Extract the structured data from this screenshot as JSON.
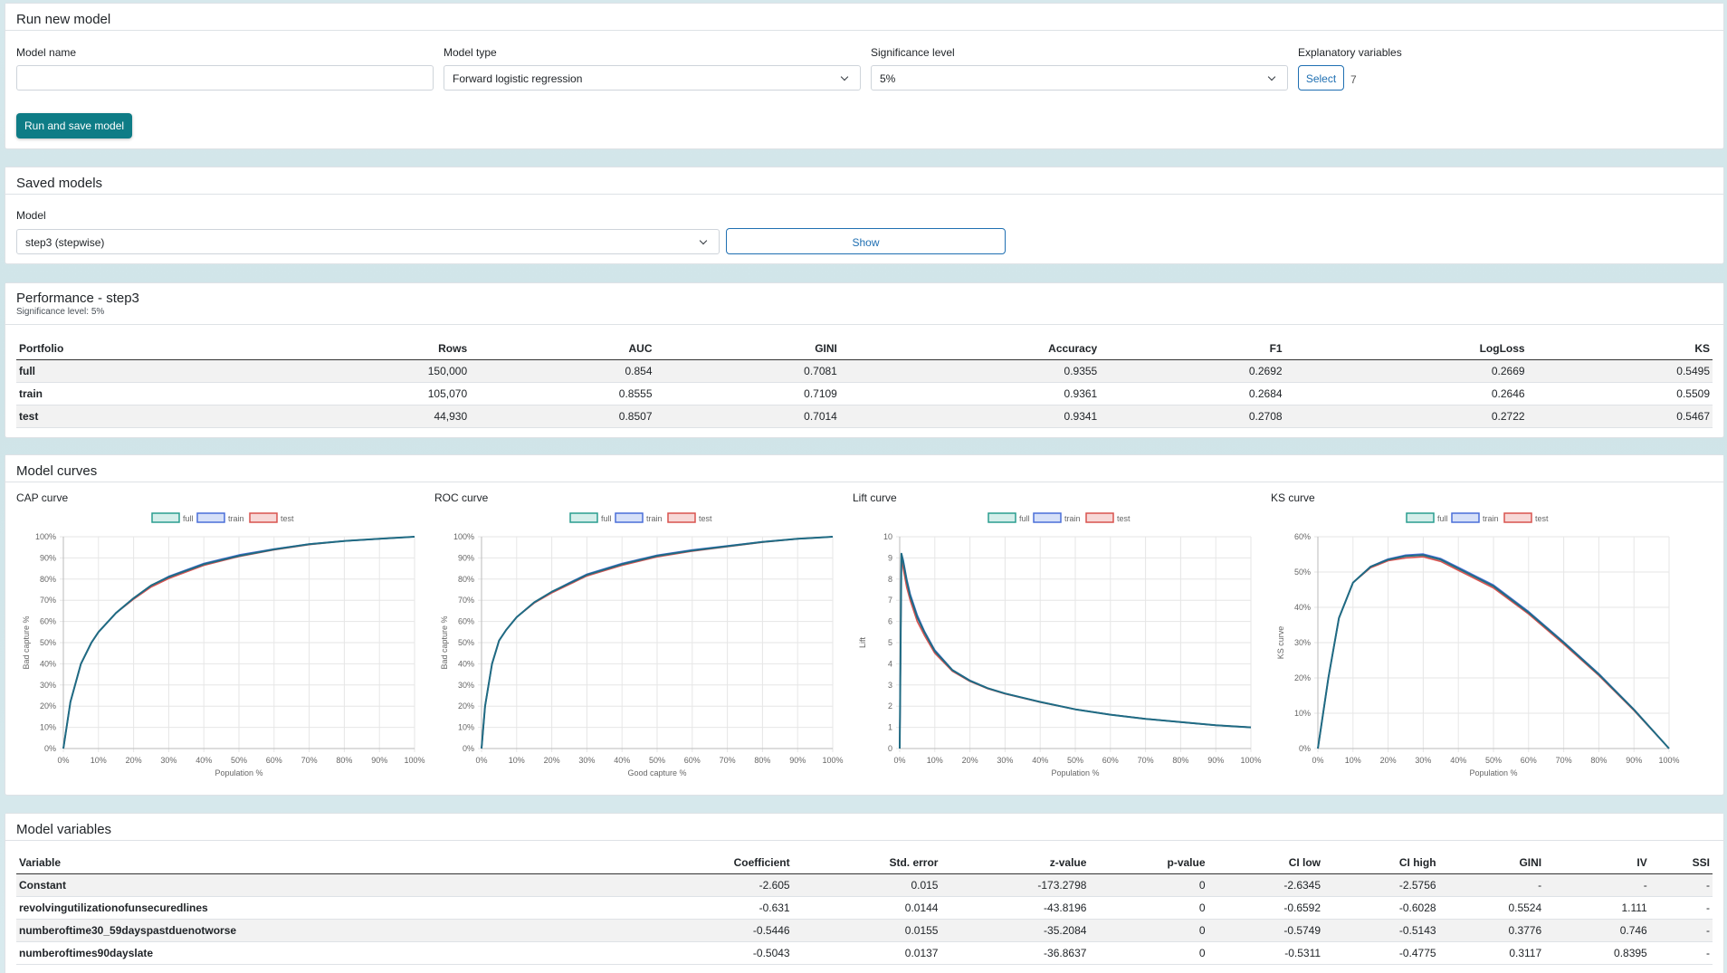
{
  "run_model": {
    "title": "Run new model",
    "model_name_label": "Model name",
    "model_name_value": "",
    "model_type_label": "Model type",
    "model_type_value": "Forward logistic regression",
    "significance_label": "Significance level",
    "significance_value": "5%",
    "explanatory_label": "Explanatory variables",
    "select_label": "Select",
    "explanatory_count": "7",
    "run_button": "Run and save model"
  },
  "saved_models": {
    "title": "Saved models",
    "model_label": "Model",
    "model_value": "step3 (stepwise)",
    "show_button": "Show"
  },
  "performance": {
    "title": "Performance - step3",
    "subtitle": "Significance level: 5%",
    "columns": [
      "Portfolio",
      "Rows",
      "AUC",
      "GINI",
      "Accuracy",
      "F1",
      "LogLoss",
      "KS"
    ],
    "rows": [
      [
        "full",
        "150,000",
        "0.854",
        "0.7081",
        "0.9355",
        "0.2692",
        "0.2669",
        "0.5495"
      ],
      [
        "train",
        "105,070",
        "0.8555",
        "0.7109",
        "0.9361",
        "0.2684",
        "0.2646",
        "0.5509"
      ],
      [
        "test",
        "44,930",
        "0.8507",
        "0.7014",
        "0.9341",
        "0.2708",
        "0.2722",
        "0.5467"
      ]
    ]
  },
  "curves": {
    "title": "Model curves",
    "legend": [
      "full",
      "train",
      "test"
    ],
    "colors": {
      "full": "#2a9d8f",
      "train": "#4a6fd8",
      "test": "#d9534f",
      "line": "#1f6b83"
    }
  },
  "chart_data": [
    {
      "type": "line",
      "title": "CAP curve",
      "xlabel": "Population %",
      "ylabel": "Bad capture %",
      "xlim": [
        0,
        100
      ],
      "ylim": [
        0,
        100
      ],
      "x_ticks": [
        "0%",
        "10%",
        "20%",
        "30%",
        "40%",
        "50%",
        "60%",
        "70%",
        "80%",
        "90%",
        "100%"
      ],
      "y_ticks": [
        "0%",
        "10%",
        "20%",
        "30%",
        "40%",
        "50%",
        "60%",
        "70%",
        "80%",
        "90%",
        "100%"
      ],
      "series": [
        {
          "name": "full",
          "x": [
            0,
            2,
            5,
            8,
            10,
            15,
            20,
            25,
            30,
            40,
            50,
            60,
            70,
            80,
            90,
            100
          ],
          "y": [
            0,
            22,
            40,
            50,
            55,
            64,
            71,
            77,
            81,
            87,
            91,
            94,
            96.5,
            98,
            99,
            100
          ]
        },
        {
          "name": "train",
          "x": [
            0,
            2,
            5,
            8,
            10,
            15,
            20,
            25,
            30,
            40,
            50,
            60,
            70,
            80,
            90,
            100
          ],
          "y": [
            0,
            22,
            40,
            50,
            55,
            64,
            71,
            77,
            81.3,
            87.4,
            91.4,
            94.2,
            96.6,
            98,
            99,
            100
          ]
        },
        {
          "name": "test",
          "x": [
            0,
            2,
            5,
            8,
            10,
            15,
            20,
            25,
            30,
            40,
            50,
            60,
            70,
            80,
            90,
            100
          ],
          "y": [
            0,
            22,
            40,
            50,
            55,
            64,
            70.5,
            76.3,
            80.3,
            86.5,
            90.7,
            93.8,
            96.3,
            98,
            99,
            100
          ]
        }
      ]
    },
    {
      "type": "line",
      "title": "ROC curve",
      "xlabel": "Good capture %",
      "ylabel": "Bad capture %",
      "xlim": [
        0,
        100
      ],
      "ylim": [
        0,
        100
      ],
      "x_ticks": [
        "0%",
        "10%",
        "20%",
        "30%",
        "40%",
        "50%",
        "60%",
        "70%",
        "80%",
        "90%",
        "100%"
      ],
      "y_ticks": [
        "0%",
        "10%",
        "20%",
        "30%",
        "40%",
        "50%",
        "60%",
        "70%",
        "80%",
        "90%",
        "100%"
      ],
      "series": [
        {
          "name": "full",
          "x": [
            0,
            1,
            3,
            5,
            7,
            10,
            15,
            20,
            25,
            30,
            40,
            50,
            60,
            70,
            80,
            90,
            100
          ],
          "y": [
            0,
            20,
            40,
            51,
            56,
            62,
            69,
            74,
            78,
            82,
            87,
            91,
            93.5,
            95.5,
            97.5,
            99,
            100
          ]
        },
        {
          "name": "train",
          "x": [
            0,
            1,
            3,
            5,
            7,
            10,
            15,
            20,
            25,
            30,
            40,
            50,
            60,
            70,
            80,
            90,
            100
          ],
          "y": [
            0,
            20,
            40,
            51,
            56,
            62,
            69,
            74,
            78.3,
            82.3,
            87.4,
            91.3,
            93.8,
            95.7,
            97.6,
            99,
            100
          ]
        },
        {
          "name": "test",
          "x": [
            0,
            1,
            3,
            5,
            7,
            10,
            15,
            20,
            25,
            30,
            40,
            50,
            60,
            70,
            80,
            90,
            100
          ],
          "y": [
            0,
            20,
            40,
            51,
            56,
            62,
            68.7,
            73.5,
            77.5,
            81.5,
            86.5,
            90.5,
            93.2,
            95.3,
            97.4,
            99,
            100
          ]
        }
      ]
    },
    {
      "type": "line",
      "title": "Lift curve",
      "xlabel": "Population %",
      "ylabel": "Lift",
      "xlim": [
        0,
        100
      ],
      "ylim": [
        0,
        10
      ],
      "x_ticks": [
        "0%",
        "10%",
        "20%",
        "30%",
        "40%",
        "50%",
        "60%",
        "70%",
        "80%",
        "90%",
        "100%"
      ],
      "y_ticks": [
        "0",
        "1",
        "2",
        "3",
        "4",
        "5",
        "6",
        "7",
        "8",
        "9",
        "10"
      ],
      "series": [
        {
          "name": "full",
          "x": [
            0,
            0.5,
            1,
            2,
            3,
            5,
            7,
            10,
            15,
            20,
            25,
            30,
            40,
            50,
            60,
            70,
            80,
            90,
            100
          ],
          "y": [
            0,
            9.2,
            8.8,
            7.9,
            7.2,
            6.2,
            5.5,
            4.6,
            3.7,
            3.2,
            2.85,
            2.6,
            2.2,
            1.85,
            1.6,
            1.4,
            1.25,
            1.1,
            1.0
          ]
        },
        {
          "name": "train",
          "x": [
            0,
            0.5,
            1,
            2,
            3,
            5,
            7,
            10,
            15,
            20,
            25,
            30,
            40,
            50,
            60,
            70,
            80,
            90,
            100
          ],
          "y": [
            0,
            9.2,
            8.9,
            8.0,
            7.3,
            6.3,
            5.55,
            4.65,
            3.72,
            3.22,
            2.86,
            2.6,
            2.2,
            1.85,
            1.6,
            1.4,
            1.25,
            1.1,
            1.0
          ]
        },
        {
          "name": "test",
          "x": [
            0,
            0.5,
            1,
            2,
            3,
            5,
            7,
            10,
            15,
            20,
            25,
            30,
            40,
            50,
            60,
            70,
            80,
            90,
            100
          ],
          "y": [
            0,
            9.0,
            8.5,
            7.6,
            7.0,
            6.0,
            5.35,
            4.5,
            3.65,
            3.17,
            2.83,
            2.58,
            2.19,
            1.85,
            1.6,
            1.4,
            1.25,
            1.1,
            1.0
          ]
        }
      ]
    },
    {
      "type": "line",
      "title": "KS curve",
      "xlabel": "Population %",
      "ylabel": "KS curve",
      "xlim": [
        0,
        100
      ],
      "ylim": [
        0,
        60
      ],
      "x_ticks": [
        "0%",
        "10%",
        "20%",
        "30%",
        "40%",
        "50%",
        "60%",
        "70%",
        "80%",
        "90%",
        "100%"
      ],
      "y_ticks": [
        "0%",
        "10%",
        "20%",
        "30%",
        "40%",
        "50%",
        "60%"
      ],
      "series": [
        {
          "name": "full",
          "x": [
            0,
            3,
            6,
            10,
            15,
            20,
            25,
            30,
            35,
            40,
            50,
            60,
            70,
            80,
            90,
            100
          ],
          "y": [
            0,
            20,
            37,
            47,
            51.5,
            53.5,
            54.5,
            54.8,
            53.5,
            51,
            46,
            38.5,
            30,
            21,
            11,
            0
          ]
        },
        {
          "name": "train",
          "x": [
            0,
            3,
            6,
            10,
            15,
            20,
            25,
            30,
            35,
            40,
            50,
            60,
            70,
            80,
            90,
            100
          ],
          "y": [
            0,
            20,
            37,
            47,
            51.6,
            53.7,
            54.8,
            55.1,
            53.8,
            51.3,
            46.3,
            38.8,
            30.2,
            21.2,
            11.1,
            0
          ]
        },
        {
          "name": "test",
          "x": [
            0,
            3,
            6,
            10,
            15,
            20,
            25,
            30,
            35,
            40,
            50,
            60,
            70,
            80,
            90,
            100
          ],
          "y": [
            0,
            20,
            37,
            47,
            51.2,
            53.2,
            54.0,
            54.3,
            53.0,
            50.5,
            45.5,
            38.1,
            29.6,
            20.7,
            10.8,
            0
          ]
        }
      ]
    }
  ],
  "variables": {
    "title": "Model variables",
    "columns": [
      "Variable",
      "Coefficient",
      "Std. error",
      "z-value",
      "p-value",
      "CI low",
      "CI high",
      "GINI",
      "IV",
      "SSI"
    ],
    "rows": [
      [
        "Constant",
        "-2.605",
        "0.015",
        "-173.2798",
        "0",
        "-2.6345",
        "-2.5756",
        "-",
        "-",
        "-"
      ],
      [
        "revolvingutilizationofunsecuredlines",
        "-0.631",
        "0.0144",
        "-43.8196",
        "0",
        "-0.6592",
        "-0.6028",
        "0.5524",
        "1.111",
        "-"
      ],
      [
        "numberoftime30_59dayspastduenotworse",
        "-0.5446",
        "0.0155",
        "-35.2084",
        "0",
        "-0.5749",
        "-0.5143",
        "0.3776",
        "0.746",
        "-"
      ],
      [
        "numberoftimes90dayslate",
        "-0.5043",
        "0.0137",
        "-36.8637",
        "0",
        "-0.5311",
        "-0.4775",
        "0.3117",
        "0.8395",
        "-"
      ]
    ]
  }
}
